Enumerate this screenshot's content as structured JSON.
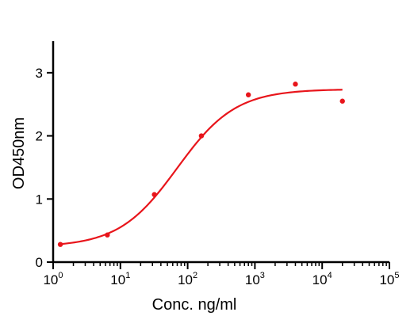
{
  "chart_data": {
    "type": "scatter",
    "title": "",
    "xlabel": "Conc. ng/ml",
    "ylabel": "OD450nm",
    "x_scale": "log10",
    "xlim": [
      1,
      100000
    ],
    "ylim": [
      0,
      3.5
    ],
    "x_tick_labels": [
      {
        "base": "10",
        "exp": "0"
      },
      {
        "base": "10",
        "exp": "1"
      },
      {
        "base": "10",
        "exp": "2"
      },
      {
        "base": "10",
        "exp": "3"
      },
      {
        "base": "10",
        "exp": "4"
      },
      {
        "base": "10",
        "exp": "5"
      }
    ],
    "y_ticks": [
      0,
      1,
      2,
      3
    ],
    "y_tick_labels": [
      "0",
      "1",
      "2",
      "3"
    ],
    "grid": false,
    "series": [
      {
        "points": [
          {
            "x": 1.28,
            "y": 0.28
          },
          {
            "x": 6.4,
            "y": 0.43
          },
          {
            "x": 32,
            "y": 1.07
          },
          {
            "x": 160,
            "y": 2.0
          },
          {
            "x": 800,
            "y": 2.65
          },
          {
            "x": 4000,
            "y": 2.82
          },
          {
            "x": 20000,
            "y": 2.55
          }
        ],
        "fit": {
          "model": "4PL",
          "bottom": 0.24,
          "top": 2.74,
          "ec50": 70,
          "hill": 1.0,
          "x_range": [
            1.28,
            20000
          ]
        },
        "color": "#e8151b"
      }
    ]
  }
}
